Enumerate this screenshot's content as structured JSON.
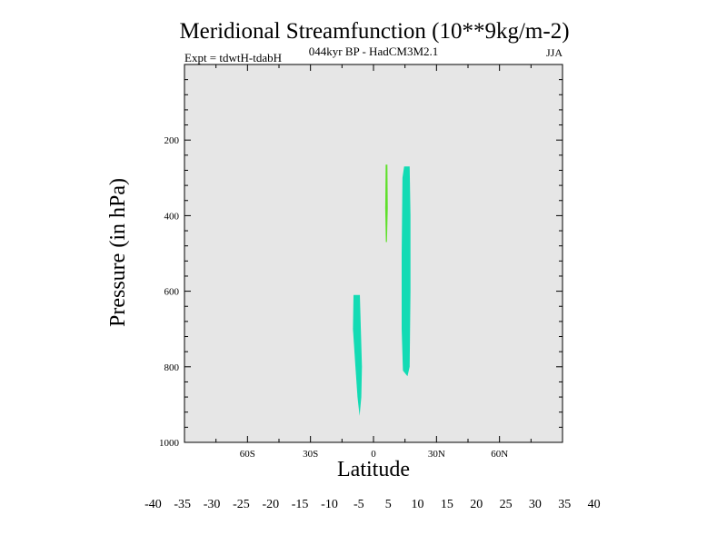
{
  "chart_data": {
    "type": "contour",
    "title": "Meridional Streamfunction (10**9kg/m-2)",
    "subtitle": "044kyr BP - HadCM3M2.1",
    "experiment": "Expt = tdwtH-tdabH",
    "season": "JJA",
    "xlabel": "Latitude",
    "ylabel": "Pressure (in hPa)",
    "xlim": [
      -90,
      90
    ],
    "ylim": [
      1000,
      0
    ],
    "x_ticks": [
      {
        "value": -60,
        "label": "60S"
      },
      {
        "value": -30,
        "label": "30S"
      },
      {
        "value": 0,
        "label": "0"
      },
      {
        "value": 30,
        "label": "30N"
      },
      {
        "value": 60,
        "label": "60N"
      }
    ],
    "y_ticks": [
      {
        "value": 200,
        "label": "200"
      },
      {
        "value": 400,
        "label": "400"
      },
      {
        "value": 600,
        "label": "600"
      },
      {
        "value": 800,
        "label": "800"
      },
      {
        "value": 1000,
        "label": "1000"
      }
    ],
    "background_color": "#e6e6e6",
    "regions": [
      {
        "name": "negative-cell-southern",
        "level": "-10 to -5",
        "color": "#13dbb4",
        "outline": [
          [
            -9.5,
            610
          ],
          [
            -6.5,
            610
          ],
          [
            -6.0,
            700
          ],
          [
            -5.5,
            800
          ],
          [
            -5.8,
            880
          ],
          [
            -6.6,
            930
          ],
          [
            -7.6,
            880
          ],
          [
            -8.6,
            800
          ],
          [
            -9.8,
            700
          ]
        ]
      },
      {
        "name": "negative-cell-northern",
        "level": "-10 to -5",
        "color": "#13dbb4",
        "outline": [
          [
            14.6,
            270
          ],
          [
            17.2,
            270
          ],
          [
            17.6,
            400
          ],
          [
            17.6,
            600
          ],
          [
            17.2,
            800
          ],
          [
            16.2,
            825
          ],
          [
            14.0,
            810
          ],
          [
            13.4,
            700
          ],
          [
            13.4,
            500
          ],
          [
            13.8,
            300
          ]
        ]
      },
      {
        "name": "positive-cell-sliver",
        "level": "5 to 10",
        "color": "#5ee02a",
        "outline": [
          [
            5.8,
            265
          ],
          [
            6.6,
            265
          ],
          [
            6.8,
            380
          ],
          [
            6.4,
            470
          ],
          [
            5.9,
            470
          ],
          [
            5.6,
            380
          ]
        ]
      }
    ],
    "colorbar": {
      "labels": [
        "-40",
        "-35",
        "-30",
        "-25",
        "-20",
        "-15",
        "-10",
        "-5",
        "5",
        "10",
        "15",
        "20",
        "25",
        "30",
        "35",
        "40"
      ],
      "colors": [
        "#7d0fe6",
        "#4016dc",
        "#1f3fdc",
        "#1768e0",
        "#1190e0",
        "#0ab3dc",
        "#0ccfd4",
        "#13dbb4",
        "#eeeeee",
        "#5ee02a",
        "#9fda12",
        "#cfd20a",
        "#e2b809",
        "#e39509",
        "#e46c09",
        "#e2400b",
        "#df2410"
      ]
    }
  }
}
